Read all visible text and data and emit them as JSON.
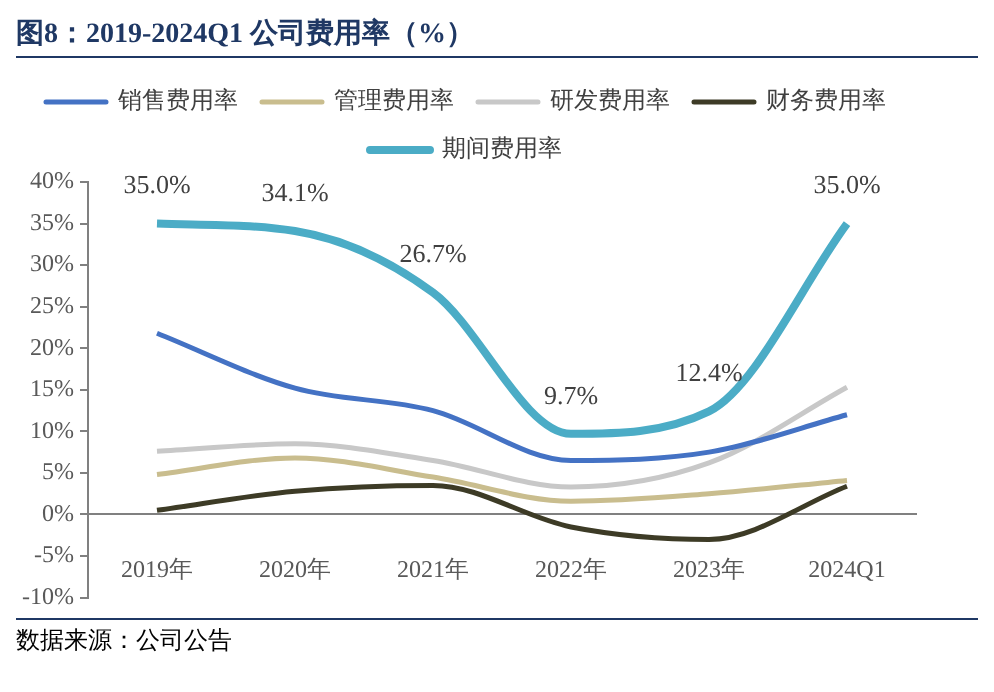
{
  "chart_data": {
    "type": "line",
    "title": "图8：2019-2024Q1 公司费用率（%）",
    "categories": [
      "2019年",
      "2020年",
      "2021年",
      "2022年",
      "2023年",
      "2024Q1"
    ],
    "series": [
      {
        "name": "销售费用率",
        "color": "#4472c4",
        "values": [
          21.8,
          15.2,
          12.5,
          6.5,
          7.5,
          12
        ]
      },
      {
        "name": "管理费用率",
        "color": "#c9bd8e",
        "values": [
          4.8,
          6.8,
          4.5,
          1.6,
          2.5,
          4.1
        ]
      },
      {
        "name": "研发费用率",
        "color": "#c8c8c8",
        "values": [
          7.6,
          8.5,
          6.5,
          3.3,
          6.2,
          15.3
        ]
      },
      {
        "name": "财务费用率",
        "color": "#3d3b26",
        "values": [
          0.5,
          2.8,
          3.5,
          -1.5,
          -3,
          3.4
        ]
      },
      {
        "name": "期间费用率",
        "color": "#4bacc6",
        "values": [
          35.0,
          34.1,
          26.7,
          9.7,
          12.4,
          35.0
        ],
        "value_labels": [
          "35.0%",
          "34.1%",
          "26.7%",
          "9.7%",
          "12.4%",
          "35.0%"
        ]
      }
    ],
    "ylim": [
      -10,
      40
    ],
    "yticks": [
      {
        "value": -10,
        "label": "-10%"
      },
      {
        "value": -5,
        "label": "-5%"
      },
      {
        "value": 0,
        "label": "0%"
      },
      {
        "value": 5,
        "label": "5%"
      },
      {
        "value": 10,
        "label": "10%"
      },
      {
        "value": 15,
        "label": "15%"
      },
      {
        "value": 20,
        "label": "20%"
      },
      {
        "value": 25,
        "label": "25%"
      },
      {
        "value": 30,
        "label": "30%"
      },
      {
        "value": 35,
        "label": "35%"
      },
      {
        "value": 40,
        "label": "40%"
      }
    ],
    "legend": "top",
    "marker": "none",
    "line_style": "solid",
    "annotations": [
      "数据来源：公司公告"
    ]
  }
}
